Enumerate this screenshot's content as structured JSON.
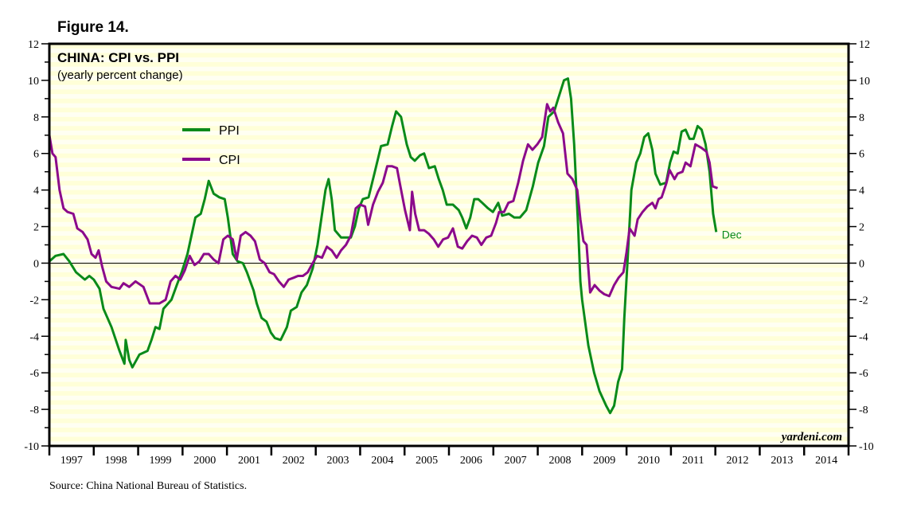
{
  "figure_label": "Figure 14.",
  "source": "Source: China National Bureau of Statistics.",
  "watermark": "yardeni.com",
  "chart_data": {
    "type": "line",
    "title": "CHINA: CPI vs. PPI",
    "subtitle": "(yearly percent change)",
    "xlabel": "",
    "ylabel": "",
    "xlim": [
      1997,
      2015
    ],
    "ylim": [
      -10,
      12
    ],
    "yticks": [
      -10,
      -8,
      -6,
      -4,
      -2,
      0,
      2,
      4,
      6,
      8,
      10,
      12
    ],
    "xtick_labels": [
      "1997",
      "1998",
      "1999",
      "2000",
      "2001",
      "2002",
      "2003",
      "2004",
      "2005",
      "2006",
      "2007",
      "2008",
      "2009",
      "2010",
      "2011",
      "2012",
      "2013",
      "2014"
    ],
    "grid": false,
    "legend_position": "upper-left",
    "end_annotation": "Dec",
    "series": [
      {
        "name": "PPI",
        "color": "#0a8a1a",
        "points": [
          [
            1997.0,
            0.1
          ],
          [
            1997.14,
            0.4
          ],
          [
            1997.32,
            0.5
          ],
          [
            1997.45,
            0.1
          ],
          [
            1997.6,
            -0.5
          ],
          [
            1997.8,
            -0.9
          ],
          [
            1997.9,
            -0.7
          ],
          [
            1998.0,
            -0.9
          ],
          [
            1998.13,
            -1.4
          ],
          [
            1998.22,
            -2.5
          ],
          [
            1998.4,
            -3.5
          ],
          [
            1998.58,
            -4.8
          ],
          [
            1998.69,
            -5.5
          ],
          [
            1998.72,
            -4.2
          ],
          [
            1998.8,
            -5.3
          ],
          [
            1998.87,
            -5.7
          ],
          [
            1999.03,
            -5.0
          ],
          [
            1999.21,
            -4.8
          ],
          [
            1999.3,
            -4.2
          ],
          [
            1999.39,
            -3.5
          ],
          [
            1999.48,
            -3.6
          ],
          [
            1999.57,
            -2.5
          ],
          [
            1999.75,
            -2.0
          ],
          [
            1999.87,
            -1.2
          ],
          [
            1999.98,
            -0.5
          ],
          [
            2000.11,
            0.5
          ],
          [
            2000.2,
            1.5
          ],
          [
            2000.29,
            2.5
          ],
          [
            2000.41,
            2.7
          ],
          [
            2000.5,
            3.5
          ],
          [
            2000.59,
            4.5
          ],
          [
            2000.7,
            3.8
          ],
          [
            2000.83,
            3.6
          ],
          [
            2000.95,
            3.5
          ],
          [
            2001.02,
            2.5
          ],
          [
            2001.13,
            0.5
          ],
          [
            2001.24,
            0.1
          ],
          [
            2001.36,
            0.0
          ],
          [
            2001.45,
            -0.5
          ],
          [
            2001.6,
            -1.5
          ],
          [
            2001.67,
            -2.2
          ],
          [
            2001.78,
            -3.0
          ],
          [
            2001.89,
            -3.2
          ],
          [
            2001.99,
            -3.8
          ],
          [
            2002.08,
            -4.1
          ],
          [
            2002.21,
            -4.2
          ],
          [
            2002.35,
            -3.5
          ],
          [
            2002.44,
            -2.6
          ],
          [
            2002.57,
            -2.4
          ],
          [
            2002.68,
            -1.6
          ],
          [
            2002.8,
            -1.2
          ],
          [
            2002.93,
            -0.3
          ],
          [
            2003.04,
            1.0
          ],
          [
            2003.13,
            2.5
          ],
          [
            2003.22,
            4.0
          ],
          [
            2003.29,
            4.6
          ],
          [
            2003.36,
            3.5
          ],
          [
            2003.43,
            1.8
          ],
          [
            2003.57,
            1.4
          ],
          [
            2003.79,
            1.4
          ],
          [
            2003.88,
            2.0
          ],
          [
            2003.97,
            3.0
          ],
          [
            2004.06,
            3.5
          ],
          [
            2004.19,
            3.6
          ],
          [
            2004.33,
            5.0
          ],
          [
            2004.47,
            6.4
          ],
          [
            2004.62,
            6.5
          ],
          [
            2004.72,
            7.5
          ],
          [
            2004.81,
            8.3
          ],
          [
            2004.92,
            8.0
          ],
          [
            2005.05,
            6.5
          ],
          [
            2005.14,
            5.8
          ],
          [
            2005.23,
            5.6
          ],
          [
            2005.35,
            5.9
          ],
          [
            2005.44,
            6.0
          ],
          [
            2005.55,
            5.2
          ],
          [
            2005.68,
            5.3
          ],
          [
            2005.77,
            4.6
          ],
          [
            2005.86,
            4.0
          ],
          [
            2005.95,
            3.2
          ],
          [
            2006.09,
            3.2
          ],
          [
            2006.22,
            2.9
          ],
          [
            2006.3,
            2.5
          ],
          [
            2006.39,
            1.9
          ],
          [
            2006.48,
            2.5
          ],
          [
            2006.57,
            3.5
          ],
          [
            2006.66,
            3.5
          ],
          [
            2006.75,
            3.3
          ],
          [
            2006.88,
            3.0
          ],
          [
            2006.99,
            2.8
          ],
          [
            2007.11,
            3.3
          ],
          [
            2007.2,
            2.6
          ],
          [
            2007.35,
            2.7
          ],
          [
            2007.47,
            2.5
          ],
          [
            2007.6,
            2.5
          ],
          [
            2007.74,
            2.9
          ],
          [
            2007.89,
            4.2
          ],
          [
            2008.01,
            5.5
          ],
          [
            2008.14,
            6.4
          ],
          [
            2008.24,
            8.0
          ],
          [
            2008.37,
            8.3
          ],
          [
            2008.46,
            9.0
          ],
          [
            2008.59,
            10.0
          ],
          [
            2008.68,
            10.1
          ],
          [
            2008.75,
            9.0
          ],
          [
            2008.82,
            6.5
          ],
          [
            2008.91,
            2.0
          ],
          [
            2008.96,
            -1.0
          ],
          [
            2009.0,
            -2.0
          ],
          [
            2009.14,
            -4.5
          ],
          [
            2009.27,
            -6.0
          ],
          [
            2009.39,
            -7.0
          ],
          [
            2009.54,
            -7.8
          ],
          [
            2009.63,
            -8.2
          ],
          [
            2009.72,
            -7.8
          ],
          [
            2009.81,
            -6.5
          ],
          [
            2009.9,
            -5.8
          ],
          [
            2009.95,
            -3.0
          ],
          [
            2010.02,
            0.0
          ],
          [
            2010.11,
            4.0
          ],
          [
            2010.22,
            5.5
          ],
          [
            2010.31,
            6.0
          ],
          [
            2010.4,
            6.9
          ],
          [
            2010.49,
            7.1
          ],
          [
            2010.58,
            6.2
          ],
          [
            2010.65,
            4.9
          ],
          [
            2010.76,
            4.3
          ],
          [
            2010.89,
            4.4
          ],
          [
            2010.98,
            5.5
          ],
          [
            2011.06,
            6.1
          ],
          [
            2011.15,
            6.0
          ],
          [
            2011.24,
            7.2
          ],
          [
            2011.33,
            7.3
          ],
          [
            2011.42,
            6.8
          ],
          [
            2011.51,
            6.8
          ],
          [
            2011.6,
            7.5
          ],
          [
            2011.69,
            7.3
          ],
          [
            2011.78,
            6.5
          ],
          [
            2011.87,
            5.0
          ],
          [
            2011.95,
            2.7
          ],
          [
            2012.02,
            1.7
          ]
        ]
      },
      {
        "name": "CPI",
        "color": "#8b0a8b",
        "points": [
          [
            1997.0,
            7.0
          ],
          [
            1997.07,
            6.0
          ],
          [
            1997.14,
            5.8
          ],
          [
            1997.23,
            4.0
          ],
          [
            1997.32,
            3.0
          ],
          [
            1997.41,
            2.8
          ],
          [
            1997.54,
            2.7
          ],
          [
            1997.63,
            1.9
          ],
          [
            1997.75,
            1.7
          ],
          [
            1997.86,
            1.3
          ],
          [
            1997.95,
            0.5
          ],
          [
            1998.04,
            0.3
          ],
          [
            1998.11,
            0.7
          ],
          [
            1998.19,
            -0.2
          ],
          [
            1998.28,
            -1.0
          ],
          [
            1998.4,
            -1.3
          ],
          [
            1998.58,
            -1.4
          ],
          [
            1998.67,
            -1.1
          ],
          [
            1998.8,
            -1.3
          ],
          [
            1998.94,
            -1.0
          ],
          [
            1999.12,
            -1.3
          ],
          [
            1999.26,
            -2.2
          ],
          [
            1999.48,
            -2.2
          ],
          [
            1999.62,
            -2.0
          ],
          [
            1999.73,
            -1.0
          ],
          [
            1999.84,
            -0.7
          ],
          [
            1999.95,
            -0.9
          ],
          [
            2000.05,
            -0.4
          ],
          [
            2000.16,
            0.4
          ],
          [
            2000.27,
            -0.1
          ],
          [
            2000.38,
            0.1
          ],
          [
            2000.48,
            0.5
          ],
          [
            2000.59,
            0.5
          ],
          [
            2000.7,
            0.2
          ],
          [
            2000.81,
            0.0
          ],
          [
            2000.92,
            1.3
          ],
          [
            2001.02,
            1.5
          ],
          [
            2001.13,
            1.3
          ],
          [
            2001.22,
            0.2
          ],
          [
            2001.31,
            1.5
          ],
          [
            2001.42,
            1.7
          ],
          [
            2001.53,
            1.5
          ],
          [
            2001.63,
            1.2
          ],
          [
            2001.74,
            0.2
          ],
          [
            2001.85,
            0.0
          ],
          [
            2001.96,
            -0.5
          ],
          [
            2002.06,
            -0.6
          ],
          [
            2002.17,
            -1.0
          ],
          [
            2002.28,
            -1.3
          ],
          [
            2002.39,
            -0.9
          ],
          [
            2002.5,
            -0.8
          ],
          [
            2002.6,
            -0.7
          ],
          [
            2002.71,
            -0.7
          ],
          [
            2002.82,
            -0.5
          ],
          [
            2002.93,
            0.0
          ],
          [
            2003.03,
            0.4
          ],
          [
            2003.14,
            0.3
          ],
          [
            2003.25,
            0.9
          ],
          [
            2003.36,
            0.7
          ],
          [
            2003.47,
            0.3
          ],
          [
            2003.57,
            0.7
          ],
          [
            2003.68,
            1.0
          ],
          [
            2003.79,
            1.5
          ],
          [
            2003.9,
            3.0
          ],
          [
            2004.0,
            3.2
          ],
          [
            2004.11,
            3.1
          ],
          [
            2004.18,
            2.1
          ],
          [
            2004.29,
            3.2
          ],
          [
            2004.4,
            3.9
          ],
          [
            2004.51,
            4.4
          ],
          [
            2004.61,
            5.3
          ],
          [
            2004.72,
            5.3
          ],
          [
            2004.83,
            5.2
          ],
          [
            2004.9,
            4.3
          ],
          [
            2005.01,
            2.9
          ],
          [
            2005.12,
            1.8
          ],
          [
            2005.17,
            3.9
          ],
          [
            2005.24,
            2.7
          ],
          [
            2005.33,
            1.8
          ],
          [
            2005.44,
            1.8
          ],
          [
            2005.55,
            1.6
          ],
          [
            2005.66,
            1.3
          ],
          [
            2005.76,
            0.9
          ],
          [
            2005.87,
            1.3
          ],
          [
            2005.98,
            1.4
          ],
          [
            2006.09,
            1.9
          ],
          [
            2006.2,
            0.9
          ],
          [
            2006.3,
            0.8
          ],
          [
            2006.41,
            1.2
          ],
          [
            2006.52,
            1.5
          ],
          [
            2006.63,
            1.4
          ],
          [
            2006.73,
            1.0
          ],
          [
            2006.84,
            1.4
          ],
          [
            2006.95,
            1.5
          ],
          [
            2007.06,
            2.2
          ],
          [
            2007.13,
            2.8
          ],
          [
            2007.24,
            2.8
          ],
          [
            2007.34,
            3.3
          ],
          [
            2007.45,
            3.4
          ],
          [
            2007.56,
            4.4
          ],
          [
            2007.67,
            5.6
          ],
          [
            2007.78,
            6.5
          ],
          [
            2007.88,
            6.2
          ],
          [
            2007.99,
            6.5
          ],
          [
            2008.1,
            6.9
          ],
          [
            2008.21,
            8.7
          ],
          [
            2008.28,
            8.3
          ],
          [
            2008.35,
            8.5
          ],
          [
            2008.46,
            7.7
          ],
          [
            2008.57,
            7.1
          ],
          [
            2008.67,
            4.9
          ],
          [
            2008.78,
            4.6
          ],
          [
            2008.89,
            4.0
          ],
          [
            2008.96,
            2.4
          ],
          [
            2009.03,
            1.2
          ],
          [
            2009.1,
            1.0
          ],
          [
            2009.18,
            -1.6
          ],
          [
            2009.28,
            -1.2
          ],
          [
            2009.39,
            -1.5
          ],
          [
            2009.5,
            -1.7
          ],
          [
            2009.61,
            -1.8
          ],
          [
            2009.72,
            -1.2
          ],
          [
            2009.82,
            -0.8
          ],
          [
            2009.93,
            -0.5
          ],
          [
            2010.0,
            0.6
          ],
          [
            2010.07,
            1.9
          ],
          [
            2010.18,
            1.5
          ],
          [
            2010.25,
            2.4
          ],
          [
            2010.36,
            2.8
          ],
          [
            2010.47,
            3.1
          ],
          [
            2010.58,
            3.3
          ],
          [
            2010.65,
            3.0
          ],
          [
            2010.72,
            3.5
          ],
          [
            2010.79,
            3.6
          ],
          [
            2010.9,
            4.4
          ],
          [
            2010.97,
            5.1
          ],
          [
            2011.08,
            4.6
          ],
          [
            2011.15,
            4.9
          ],
          [
            2011.26,
            5.0
          ],
          [
            2011.33,
            5.5
          ],
          [
            2011.44,
            5.3
          ],
          [
            2011.55,
            6.5
          ],
          [
            2011.62,
            6.4
          ],
          [
            2011.69,
            6.3
          ],
          [
            2011.8,
            6.1
          ],
          [
            2011.87,
            5.5
          ],
          [
            2011.94,
            4.2
          ],
          [
            2012.05,
            4.1
          ]
        ]
      }
    ]
  }
}
